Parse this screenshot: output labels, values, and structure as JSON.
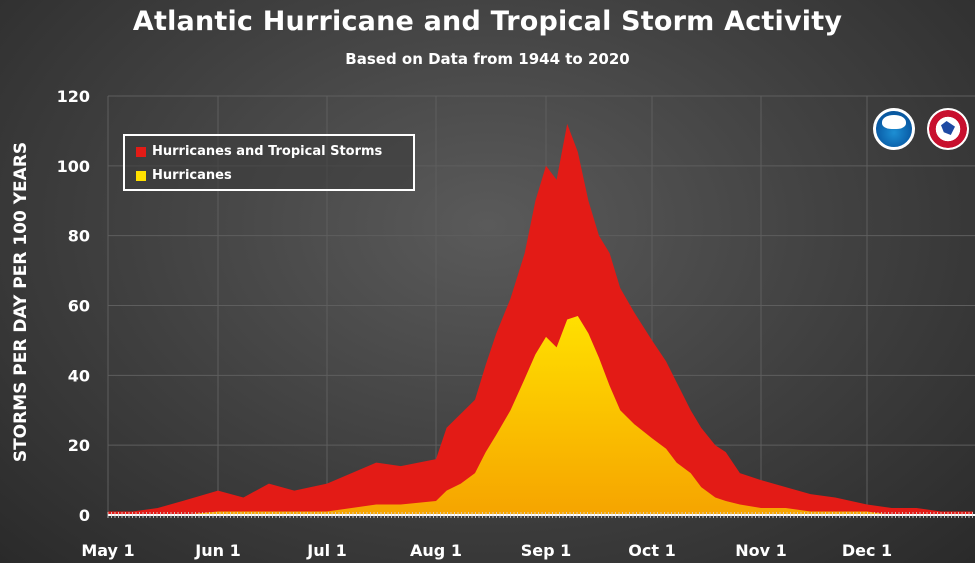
{
  "title": "Atlantic Hurricane and Tropical Storm Activity",
  "subtitle": "Based on Data from 1944 to 2020",
  "colors": {
    "background": "#3f3f3f",
    "storms": "#e31b16",
    "hurricanes_top": "#ffe000",
    "hurricanes_bottom": "#f5a800",
    "grid": "#5e5e5e",
    "text": "#ffffff"
  },
  "logos": [
    {
      "name": "noaa-logo",
      "text": "NOAA"
    },
    {
      "name": "nws-logo",
      "text": "National Weather Service"
    }
  ],
  "chart_data": {
    "type": "area",
    "title": "Atlantic Hurricane and Tropical Storm Activity",
    "subtitle": "Based on Data from 1944 to 2020",
    "xlabel": "",
    "ylabel": "STORMS PER DAY PER 100 YEARS",
    "ylim": [
      0,
      120
    ],
    "xlim": [
      "May 1",
      "Dec 31"
    ],
    "yticks": [
      0,
      20,
      40,
      60,
      80,
      100,
      120
    ],
    "xticks": [
      "May 1",
      "Jun 1",
      "Jul 1",
      "Aug 1",
      "Sep 1",
      "Oct 1",
      "Nov 1",
      "Dec 1"
    ],
    "grid": true,
    "legend_position": "top-left",
    "x": [
      "May 1",
      "May 8",
      "May 15",
      "May 22",
      "Jun 1",
      "Jun 8",
      "Jun 15",
      "Jun 22",
      "Jul 1",
      "Jul 8",
      "Jul 15",
      "Jul 22",
      "Aug 1",
      "Aug 4",
      "Aug 8",
      "Aug 12",
      "Aug 15",
      "Aug 18",
      "Aug 22",
      "Aug 26",
      "Aug 29",
      "Sep 1",
      "Sep 4",
      "Sep 7",
      "Sep 10",
      "Sep 13",
      "Sep 16",
      "Sep 19",
      "Sep 22",
      "Sep 26",
      "Oct 1",
      "Oct 5",
      "Oct 8",
      "Oct 12",
      "Oct 15",
      "Oct 19",
      "Oct 22",
      "Oct 26",
      "Nov 1",
      "Nov 8",
      "Nov 15",
      "Nov 22",
      "Dec 1",
      "Dec 8",
      "Dec 15",
      "Dec 22",
      "Dec 31"
    ],
    "series": [
      {
        "name": "Hurricanes and Tropical Storms",
        "color": "#e31b16",
        "values": [
          1,
          1,
          2,
          4,
          7,
          5,
          9,
          7,
          9,
          12,
          15,
          14,
          16,
          25,
          29,
          33,
          43,
          52,
          62,
          75,
          90,
          100,
          96,
          112,
          104,
          90,
          80,
          75,
          65,
          58,
          50,
          44,
          38,
          30,
          25,
          20,
          18,
          12,
          10,
          8,
          6,
          5,
          3,
          2,
          2,
          1,
          1
        ]
      },
      {
        "name": "Hurricanes",
        "color": "#ffe000",
        "values": [
          0,
          0,
          0,
          0,
          1,
          1,
          1,
          1,
          1,
          2,
          3,
          3,
          4,
          7,
          9,
          12,
          18,
          23,
          30,
          39,
          46,
          51,
          48,
          56,
          57,
          52,
          45,
          37,
          30,
          26,
          22,
          19,
          15,
          12,
          8,
          5,
          4,
          3,
          2,
          2,
          1,
          1,
          1,
          0,
          0,
          0,
          0
        ]
      }
    ]
  }
}
